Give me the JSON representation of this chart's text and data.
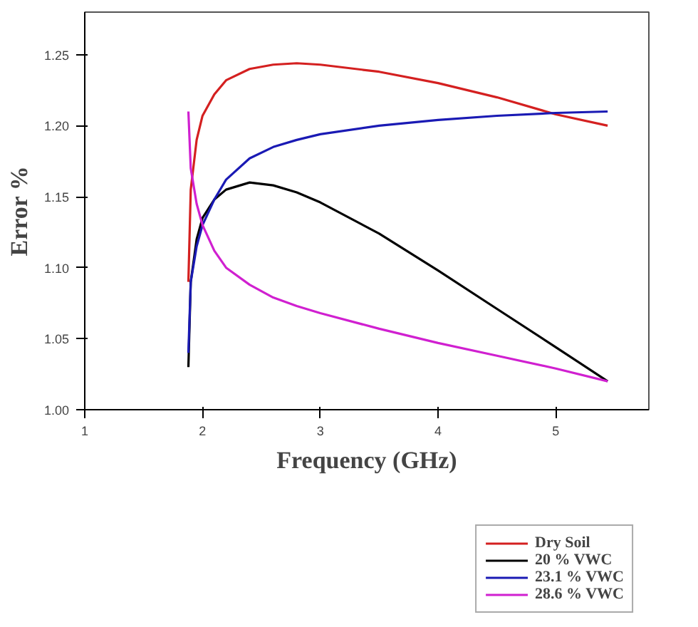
{
  "chart_data": {
    "type": "line",
    "xlabel": "Frequency (GHz)",
    "ylabel": "Error %",
    "xlim": [
      1,
      5.79
    ],
    "ylim": [
      1.0,
      1.28
    ],
    "xticks": [
      1,
      2,
      3,
      4,
      5
    ],
    "yticks": [
      {
        "value": 1.0,
        "label": "1.00"
      },
      {
        "value": 1.05,
        "label": "1.05"
      },
      {
        "value": 1.1,
        "label": "1.10"
      },
      {
        "value": 1.15,
        "label": "1.15"
      },
      {
        "value": 1.2,
        "label": "1.20"
      },
      {
        "value": 1.25,
        "label": "1.25"
      }
    ],
    "grid": false,
    "legend": "bottom right",
    "line_style": "solid",
    "x": [
      1.88,
      1.9,
      1.95,
      2.0,
      2.1,
      2.2,
      2.4,
      2.6,
      2.8,
      3.0,
      3.5,
      4.0,
      4.5,
      5.0,
      5.44
    ],
    "series": [
      {
        "name": "Dry Soil",
        "color": "#d42020",
        "values": [
          1.09,
          1.155,
          1.19,
          1.207,
          1.222,
          1.232,
          1.24,
          1.243,
          1.244,
          1.243,
          1.238,
          1.23,
          1.22,
          1.208,
          1.2
        ]
      },
      {
        "name": "20 % VWC",
        "color": "#000000",
        "values": [
          1.03,
          1.09,
          1.12,
          1.135,
          1.148,
          1.155,
          1.16,
          1.158,
          1.153,
          1.146,
          1.124,
          1.098,
          1.071,
          1.044,
          1.02
        ]
      },
      {
        "name": "23.1 % VWC",
        "color": "#1a1ab4",
        "values": [
          1.04,
          1.09,
          1.115,
          1.13,
          1.148,
          1.162,
          1.177,
          1.185,
          1.19,
          1.194,
          1.2,
          1.204,
          1.207,
          1.209,
          1.21
        ]
      },
      {
        "name": "28.6 % VWC",
        "color": "#d020d0",
        "values": [
          1.21,
          1.17,
          1.145,
          1.13,
          1.112,
          1.1,
          1.088,
          1.079,
          1.073,
          1.068,
          1.057,
          1.047,
          1.038,
          1.029,
          1.02
        ]
      }
    ]
  }
}
